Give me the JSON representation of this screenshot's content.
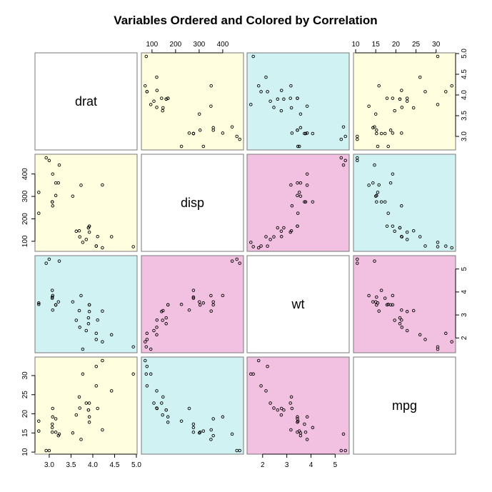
{
  "chart_data": {
    "type": "scatter",
    "subtype": "scatterplot-matrix",
    "title": "Variables Ordered and Colored by Correlation",
    "variables": [
      "drat",
      "disp",
      "wt",
      "mpg"
    ],
    "colors": {
      "positive_weak": "#ffffe0",
      "negative_moderate": "#d1f2f2",
      "strong": "#f2c0e0",
      "diagonal": "#ffffff"
    },
    "panel_colors": [
      [
        "diagonal",
        "positive_weak",
        "negative_moderate",
        "positive_weak"
      ],
      [
        "positive_weak",
        "diagonal",
        "strong",
        "negative_moderate"
      ],
      [
        "negative_moderate",
        "strong",
        "diagonal",
        "strong"
      ],
      [
        "positive_weak",
        "negative_moderate",
        "strong",
        "diagonal"
      ]
    ],
    "ranges": {
      "drat": [
        2.76,
        4.93
      ],
      "disp": [
        71.1,
        472
      ],
      "wt": [
        1.513,
        5.424
      ],
      "mpg": [
        10.4,
        33.9
      ]
    },
    "axes": {
      "top": [
        {
          "column": 1,
          "variable": "disp",
          "ticks": [
            100,
            200,
            300,
            400
          ],
          "labels": [
            "100",
            "200",
            "300",
            "400"
          ]
        },
        {
          "column": 3,
          "variable": "mpg",
          "ticks": [
            10,
            15,
            20,
            25,
            30
          ],
          "labels": [
            "10",
            "15",
            "20",
            "25",
            "30"
          ]
        }
      ],
      "bottom": [
        {
          "column": 0,
          "variable": "drat",
          "ticks": [
            3.0,
            3.5,
            4.0,
            4.5,
            5.0
          ],
          "labels": [
            "3.0",
            "3.5",
            "4.0",
            "4.5",
            "5.0"
          ]
        },
        {
          "column": 2,
          "variable": "wt",
          "ticks": [
            2,
            3,
            4,
            5
          ],
          "labels": [
            "2",
            "3",
            "4",
            "5"
          ]
        }
      ],
      "left": [
        {
          "row": 1,
          "variable": "disp",
          "ticks": [
            100,
            200,
            300,
            400
          ],
          "labels": [
            "100",
            "200",
            "300",
            "400"
          ]
        },
        {
          "row": 3,
          "variable": "mpg",
          "ticks": [
            10,
            15,
            20,
            25,
            30
          ],
          "labels": [
            "10",
            "15",
            "20",
            "25",
            "30"
          ]
        }
      ],
      "right": [
        {
          "row": 0,
          "variable": "drat",
          "ticks": [
            3.0,
            3.5,
            4.0,
            4.5,
            5.0
          ],
          "labels": [
            "3.0",
            "3.5",
            "4.0",
            "4.5",
            "5.0"
          ]
        },
        {
          "row": 2,
          "variable": "wt",
          "ticks": [
            2,
            3,
            4,
            5
          ],
          "labels": [
            "2",
            "3",
            "4",
            "5"
          ]
        }
      ]
    },
    "data": {
      "drat": [
        3.9,
        3.9,
        3.85,
        3.08,
        3.15,
        2.76,
        3.21,
        3.69,
        3.92,
        3.92,
        3.92,
        3.07,
        3.07,
        3.07,
        2.93,
        3.0,
        3.23,
        4.08,
        4.93,
        4.22,
        3.7,
        2.76,
        3.15,
        3.73,
        3.08,
        4.08,
        4.43,
        3.77,
        4.22,
        3.62,
        3.54,
        4.11
      ],
      "disp": [
        160,
        160,
        108,
        258,
        360,
        225,
        360,
        146.7,
        140.8,
        167.6,
        167.6,
        275.8,
        275.8,
        275.8,
        472,
        460,
        440,
        78.7,
        75.7,
        71.1,
        120.1,
        318,
        304,
        350,
        400,
        79,
        120.3,
        95.1,
        351,
        145,
        301,
        121
      ],
      "wt": [
        2.62,
        2.875,
        2.32,
        3.215,
        3.44,
        3.46,
        3.57,
        3.19,
        3.15,
        3.44,
        3.44,
        4.07,
        3.73,
        3.78,
        5.25,
        5.424,
        5.345,
        2.2,
        1.615,
        1.835,
        2.465,
        3.52,
        3.435,
        3.84,
        3.845,
        1.935,
        2.14,
        1.513,
        3.17,
        2.77,
        3.57,
        2.78
      ],
      "mpg": [
        21.0,
        21.0,
        22.8,
        21.4,
        18.7,
        18.1,
        14.3,
        24.4,
        22.8,
        19.2,
        17.8,
        16.4,
        17.3,
        15.2,
        10.4,
        10.4,
        14.7,
        32.4,
        30.4,
        33.9,
        21.5,
        15.5,
        15.2,
        13.3,
        19.2,
        27.3,
        26.0,
        30.4,
        15.8,
        19.7,
        15.0,
        21.4
      ]
    }
  }
}
